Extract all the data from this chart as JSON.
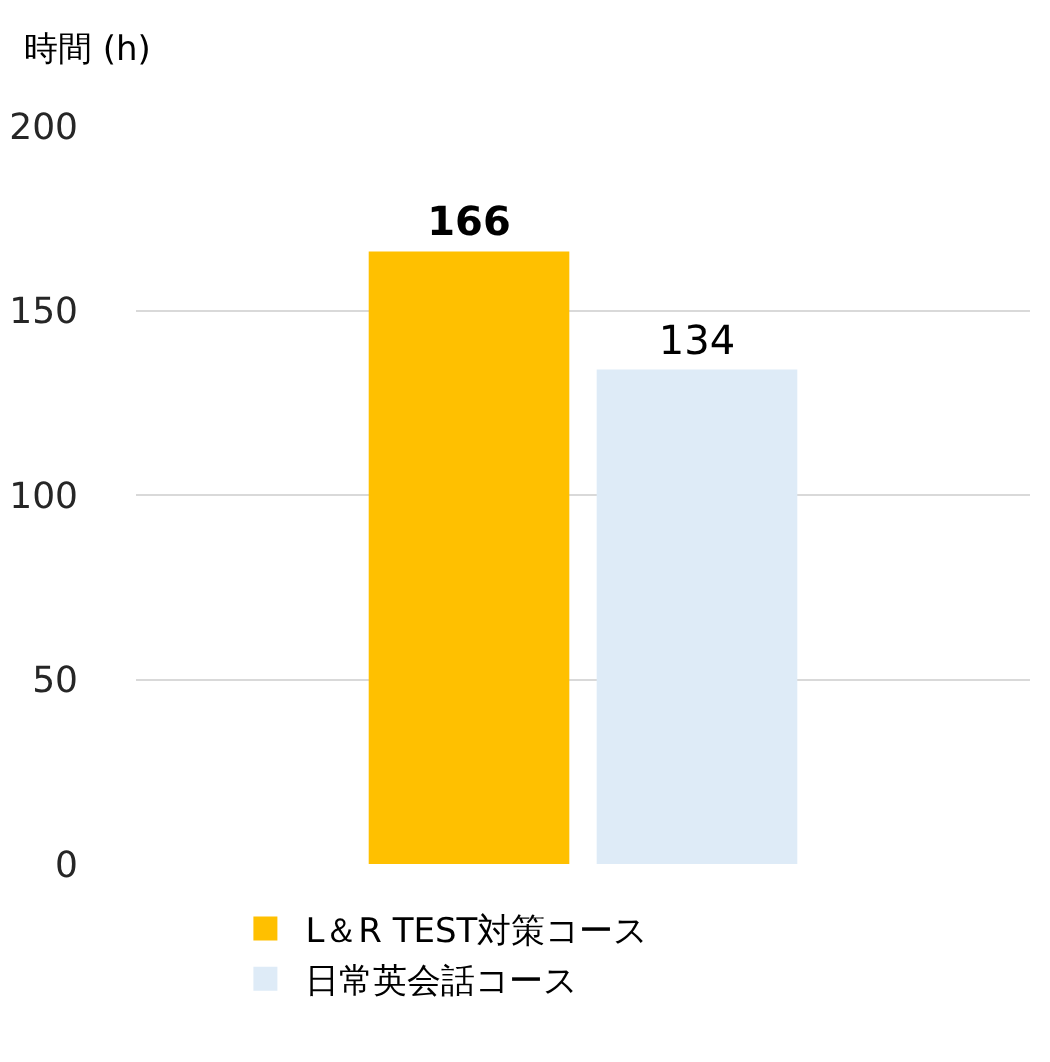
{
  "chart_data": {
    "type": "bar",
    "ylabel": "時間 (h)",
    "categories": [
      null
    ],
    "series": [
      {
        "name": "L＆R TEST対策コース",
        "color": "#ffc000",
        "values": [
          166
        ]
      },
      {
        "name": "日常英会話コース",
        "color": "#deebf7",
        "values": [
          134
        ]
      }
    ],
    "ylim": [
      0,
      200
    ],
    "yticks": [
      0,
      50,
      100,
      150,
      200
    ],
    "grid": "y",
    "legend": "bottom",
    "data_labels": true
  }
}
